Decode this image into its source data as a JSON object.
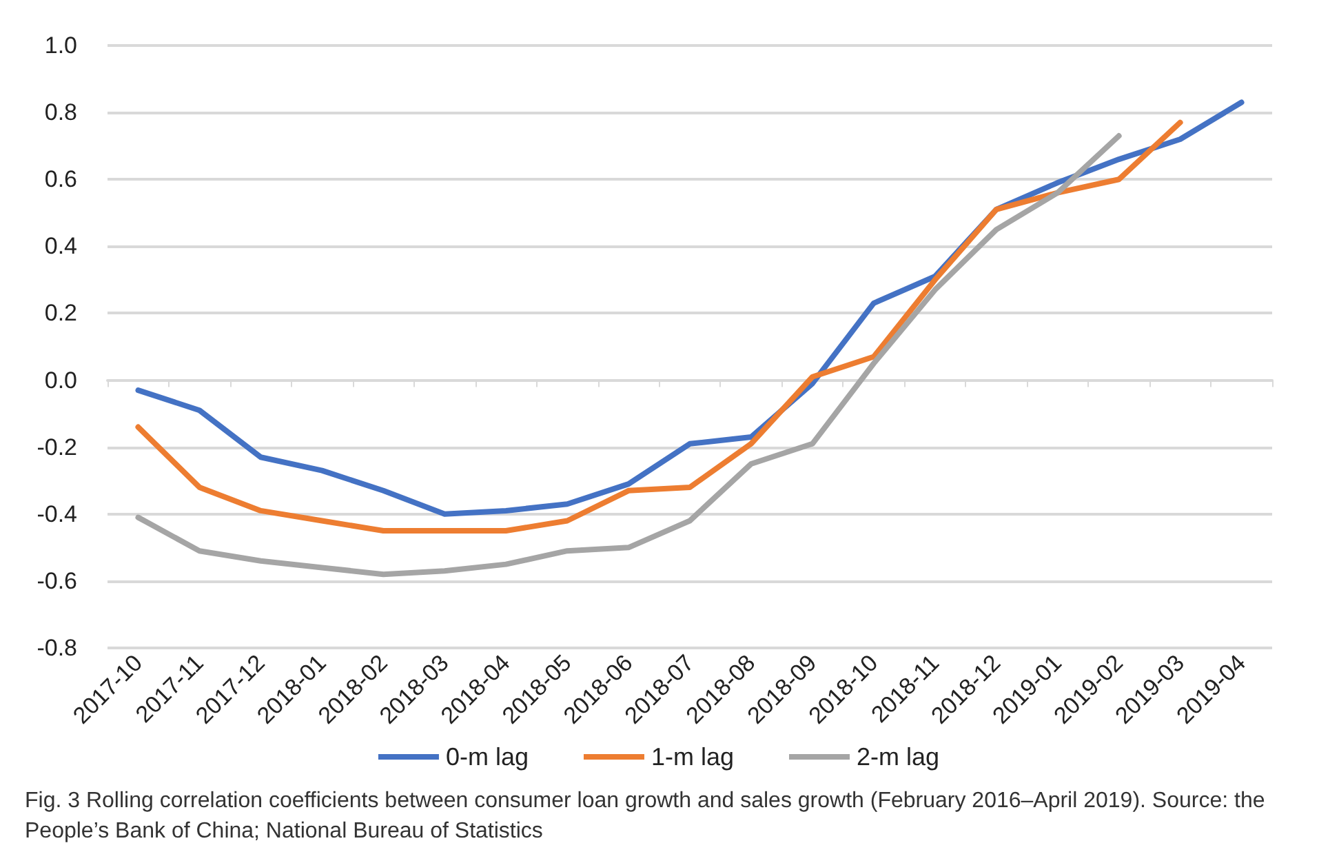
{
  "chart_data": {
    "type": "line",
    "categories": [
      "2017-10",
      "2017-11",
      "2017-12",
      "2018-01",
      "2018-02",
      "2018-03",
      "2018-04",
      "2018-05",
      "2018-06",
      "2018-07",
      "2018-08",
      "2018-09",
      "2018-10",
      "2018-11",
      "2018-12",
      "2019-01",
      "2019-02",
      "2019-03",
      "2019-04"
    ],
    "series": [
      {
        "name": "0-m lag",
        "color": "#4472c4",
        "values": [
          -0.03,
          -0.09,
          -0.23,
          -0.27,
          -0.33,
          -0.4,
          -0.39,
          -0.37,
          -0.31,
          -0.19,
          -0.17,
          -0.01,
          0.23,
          0.31,
          0.51,
          0.59,
          0.66,
          0.72,
          0.83
        ]
      },
      {
        "name": "1-m lag",
        "color": "#ed7d31",
        "values": [
          -0.14,
          -0.32,
          -0.39,
          -0.42,
          -0.45,
          -0.45,
          -0.45,
          -0.42,
          -0.33,
          -0.32,
          -0.19,
          0.01,
          0.07,
          0.3,
          0.51,
          0.56,
          0.6,
          0.77,
          null
        ]
      },
      {
        "name": "2-m lag",
        "color": "#a5a5a5",
        "values": [
          -0.41,
          -0.51,
          -0.54,
          -0.56,
          -0.58,
          -0.57,
          -0.55,
          -0.51,
          -0.5,
          -0.42,
          -0.25,
          -0.19,
          0.05,
          0.27,
          0.45,
          0.56,
          0.73,
          null,
          null
        ]
      }
    ],
    "ylim": [
      -0.8,
      1.0
    ],
    "yticks": [
      {
        "value": -0.8,
        "label": "-0.8"
      },
      {
        "value": -0.6,
        "label": "-0.6"
      },
      {
        "value": -0.4,
        "label": "-0.4"
      },
      {
        "value": -0.2,
        "label": "-0.2"
      },
      {
        "value": 0,
        "label": "0.0"
      },
      {
        "value": 0.2,
        "label": "0.2"
      },
      {
        "value": 0.4,
        "label": "0.4"
      },
      {
        "value": 0.6,
        "label": "0.6"
      },
      {
        "value": 0.8,
        "label": "0.8"
      },
      {
        "value": 1.0,
        "label": "1.0"
      }
    ],
    "grid": "y",
    "legend": "bottom",
    "marker": "none",
    "line_style": "solid",
    "annotations": [
      "Fig. 3 Rolling correlation coefficients between consumer loan growth and sales growth (February 2016–April 2019). Source: the People’s Bank of China; National Bureau of Statistics"
    ]
  }
}
